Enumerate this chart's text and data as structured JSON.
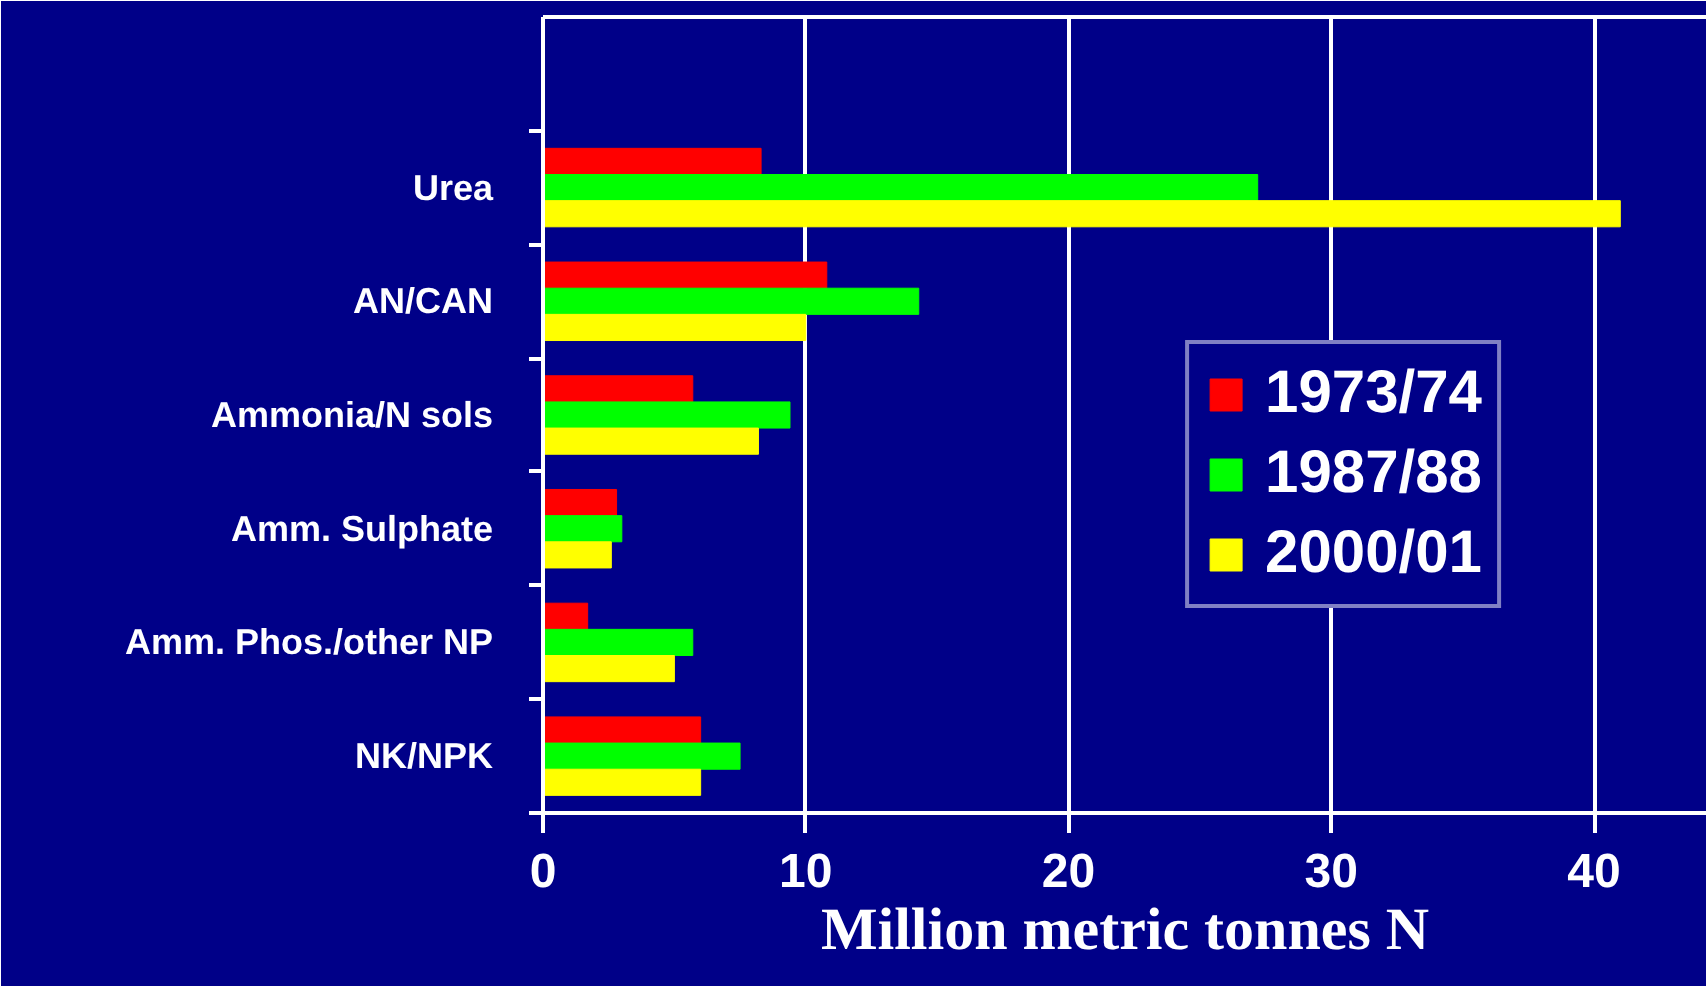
{
  "chart_data": {
    "type": "bar",
    "orientation": "horizontal",
    "categories": [
      null,
      "Urea",
      "AN/CAN",
      "Ammonia/N sols",
      "Amm. Sulphate",
      "Amm. Phos./other NP",
      "NK/NPK"
    ],
    "series": [
      {
        "name": "1973/74",
        "color": "#ff0000",
        "values": [
          null,
          8.3,
          10.8,
          5.7,
          2.8,
          1.7,
          6.0
        ]
      },
      {
        "name": "1987/88",
        "color": "#00ff00",
        "values": [
          null,
          27.2,
          14.3,
          9.4,
          3.0,
          5.7,
          7.5
        ]
      },
      {
        "name": "2000/01",
        "color": "#ffff00",
        "values": [
          null,
          41.0,
          10.0,
          8.2,
          2.6,
          5.0,
          6.0
        ]
      }
    ],
    "xlabel": "Million metric tonnes N",
    "xlim": [
      0,
      44.3
    ],
    "xticks": [
      0,
      10,
      20,
      30,
      40
    ],
    "grid": "x",
    "legend": "right"
  }
}
